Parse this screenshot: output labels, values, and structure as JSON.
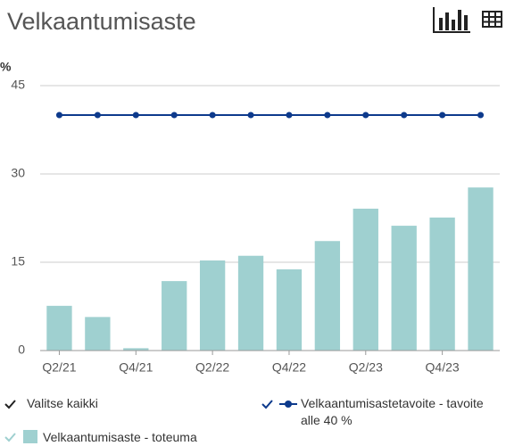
{
  "chart_data": {
    "type": "bar",
    "title": "Velkaantumisaste",
    "y_label": "%",
    "categories": [
      "Q2/21",
      null,
      "Q4/21",
      null,
      "Q2/22",
      null,
      "Q4/22",
      null,
      "Q2/23",
      null,
      "Q4/23",
      null
    ],
    "series": [
      {
        "name": "Velkaantumisaste - toteuma",
        "type": "bar",
        "color": "#9fd0d0",
        "values": [
          7.6,
          5.7,
          0.4,
          11.8,
          15.3,
          16.1,
          13.8,
          18.6,
          24.1,
          21.2,
          22.6,
          27.7
        ]
      },
      {
        "name": "Velkaantumisastetavoite - tavoite alle 40 %",
        "type": "line",
        "color": "#0d3a8c",
        "values": [
          40,
          40,
          40,
          40,
          40,
          40,
          40,
          40,
          40,
          40,
          40,
          40
        ]
      }
    ],
    "ylim": [
      0,
      45
    ],
    "yticks": [
      0,
      15,
      30,
      45
    ],
    "grid": true,
    "select_all": "Valitse kaikki"
  }
}
